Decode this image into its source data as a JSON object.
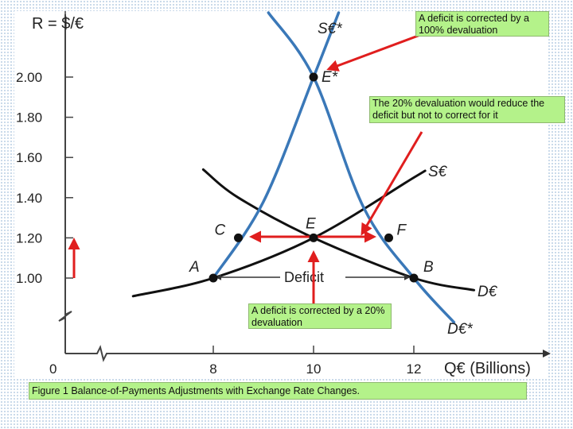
{
  "chart_data": {
    "type": "line",
    "title": "",
    "xlabel": "Q€ (Billions)",
    "ylabel": "R = $/€",
    "xlim": [
      6,
      13.3
    ],
    "ylim": [
      0.62,
      2.34
    ],
    "x_ticks": [
      "0",
      "8",
      "10",
      "12"
    ],
    "y_ticks": [
      "1.00",
      "1.20",
      "1.40",
      "1.60",
      "1.80",
      "2.00"
    ],
    "series": [
      {
        "name": "S€",
        "color": "#111111",
        "points": [
          [
            6.4,
            0.91
          ],
          [
            8.0,
            1.0
          ],
          [
            10.0,
            1.2
          ],
          [
            12.0,
            1.5
          ],
          [
            12.2,
            1.53
          ]
        ]
      },
      {
        "name": "D€",
        "color": "#111111",
        "points": [
          [
            7.8,
            1.54
          ],
          [
            8.5,
            1.4
          ],
          [
            10.0,
            1.2
          ],
          [
            12.0,
            1.0
          ],
          [
            13.2,
            0.94
          ]
        ]
      },
      {
        "name": "S€*",
        "color": "#3a78b8",
        "points": [
          [
            8.0,
            1.0
          ],
          [
            9.0,
            1.38
          ],
          [
            10.0,
            2.0
          ],
          [
            10.5,
            2.32
          ]
        ]
      },
      {
        "name": "D€*",
        "color": "#3a78b8",
        "points": [
          [
            9.1,
            2.32
          ],
          [
            10.0,
            2.0
          ],
          [
            11.0,
            1.35
          ],
          [
            12.0,
            1.0
          ],
          [
            12.8,
            0.78
          ]
        ]
      }
    ],
    "points": [
      {
        "label": "E*",
        "x": 10.0,
        "y": 2.0
      },
      {
        "label": "E",
        "x": 10.0,
        "y": 1.2
      },
      {
        "label": "C",
        "x": 8.5,
        "y": 1.2
      },
      {
        "label": "F",
        "x": 11.5,
        "y": 1.2
      },
      {
        "label": "A",
        "x": 8.0,
        "y": 1.0
      },
      {
        "label": "B",
        "x": 12.0,
        "y": 1.0
      }
    ],
    "annotations": {
      "deficit_label": "Deficit",
      "axis_break": true
    },
    "notes": [
      "A deficit is corrected by a 100% devaluation",
      "The 20% devaluation would reduce the deficit but not to correct for it",
      "A deficit is corrected by a 20% devaluation"
    ],
    "caption": "Figure 1 Balance-of-Payments Adjustments with Exchange Rate Changes."
  }
}
